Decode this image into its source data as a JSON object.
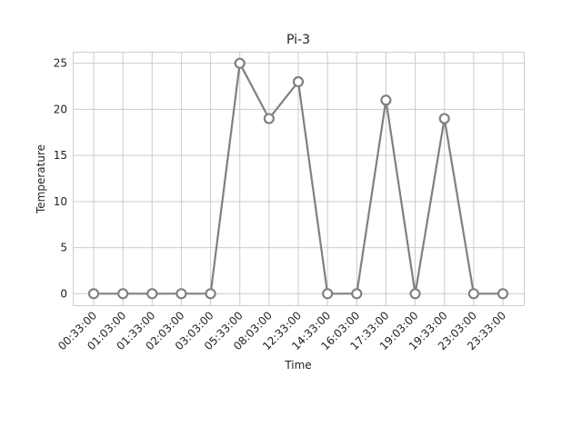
{
  "chart_data": {
    "type": "line",
    "title": "Pi-3",
    "xlabel": "Time",
    "ylabel": "Temperature",
    "categories": [
      "00:33:00",
      "01:03:00",
      "01:33:00",
      "02:03:00",
      "03:03:00",
      "05:33:00",
      "08:03:00",
      "12:33:00",
      "14:33:00",
      "16:03:00",
      "17:33:00",
      "19:03:00",
      "19:33:00",
      "23:03:00",
      "23:33:00"
    ],
    "series": [
      {
        "values": [
          0,
          0,
          0,
          0,
          0,
          25,
          19,
          23,
          0,
          0,
          21,
          0,
          19,
          0,
          0
        ]
      }
    ],
    "ylim": [
      -1.25,
      26.25
    ],
    "yticks": [
      0,
      5,
      10,
      15,
      20,
      25
    ],
    "grid": true,
    "line_color": "#808080",
    "marker_fill": "#ffffff"
  }
}
